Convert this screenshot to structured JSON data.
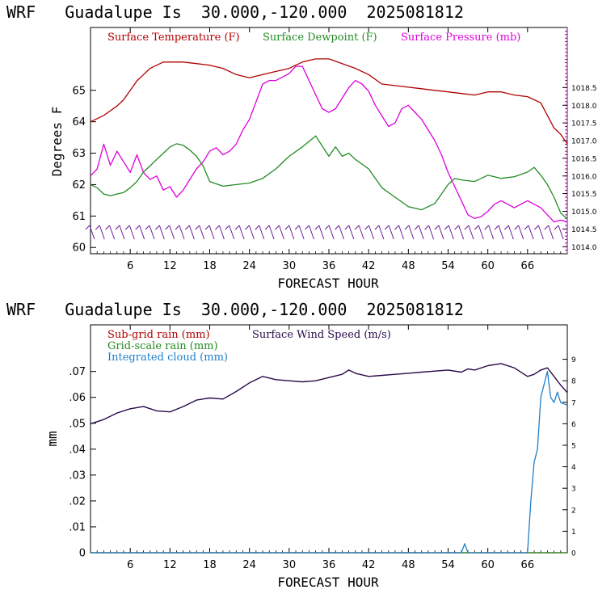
{
  "colors": {
    "temperature": "#b00000",
    "dewpoint": "#228b22",
    "pressure": "#dd00dd",
    "subgrid": "#b00000",
    "gridscale": "#228b22",
    "cloud": "#1e7ec8",
    "wind": "#2a0a4a",
    "barb": "#6a1b9a"
  },
  "chart_data": [
    {
      "type": "line",
      "title": "WRF   Guadalupe Is  30.000,-120.000  2025081812",
      "xlabel": "FORECAST HOUR",
      "ylabel": "Degrees F",
      "xlim": [
        0,
        72
      ],
      "ylim": [
        59.8,
        67
      ],
      "y2lim": [
        1013.8,
        1020.2
      ],
      "xticks": [
        6,
        12,
        18,
        24,
        30,
        36,
        42,
        48,
        54,
        60,
        66
      ],
      "xtick_labels": [
        "6",
        "12",
        "18",
        "24",
        "30",
        "36",
        "42",
        "48",
        "54",
        "60",
        "66"
      ],
      "yticks": [
        60,
        61,
        62,
        63,
        64,
        65
      ],
      "ytick_labels": [
        "60",
        "61",
        "62",
        "63",
        "64",
        "65"
      ],
      "y2ticks": [
        1014.0,
        1014.5,
        1015.0,
        1015.5,
        1016.0,
        1016.5,
        1017.0,
        1017.5,
        1018.0,
        1018.5
      ],
      "y2tick_labels": [
        "1014.0",
        "1014.5",
        "1015.0",
        "1015.5",
        "1016.0",
        "1016.5",
        "1017.0",
        "1017.5",
        "1018.0",
        "1018.5"
      ],
      "wind_barb_count": 48,
      "series": [
        {
          "name": "Surface Temperature (F)",
          "x": [
            0,
            2,
            4,
            5,
            6,
            7,
            8,
            9,
            10,
            11,
            12,
            14,
            16,
            18,
            20,
            22,
            24,
            26,
            28,
            30,
            31,
            32,
            33,
            34,
            36,
            38,
            40,
            42,
            44,
            46,
            48,
            50,
            52,
            54,
            56,
            58,
            60,
            62,
            64,
            66,
            68,
            69,
            70,
            71,
            72
          ],
          "y": [
            64.0,
            64.2,
            64.5,
            64.7,
            65.0,
            65.3,
            65.5,
            65.7,
            65.8,
            65.9,
            65.9,
            65.9,
            65.85,
            65.8,
            65.7,
            65.5,
            65.4,
            65.5,
            65.6,
            65.7,
            65.8,
            65.9,
            65.95,
            66.0,
            66.0,
            65.85,
            65.7,
            65.5,
            65.2,
            65.15,
            65.1,
            65.05,
            65.0,
            64.95,
            64.9,
            64.85,
            64.95,
            64.95,
            64.85,
            64.8,
            64.6,
            64.2,
            63.8,
            63.6,
            63.3
          ]
        },
        {
          "name": "Surface Dewpoint (F)",
          "x": [
            0,
            1,
            2,
            3,
            4,
            5,
            6,
            7,
            8,
            9,
            10,
            11,
            12,
            13,
            14,
            15,
            16,
            17,
            18,
            20,
            22,
            24,
            26,
            28,
            30,
            32,
            34,
            36,
            37,
            38,
            39,
            40,
            42,
            44,
            46,
            48,
            50,
            52,
            54,
            55,
            56,
            58,
            60,
            62,
            64,
            66,
            67,
            68,
            69,
            70,
            71,
            72
          ],
          "y": [
            62.0,
            61.9,
            61.7,
            61.65,
            61.7,
            61.75,
            61.9,
            62.1,
            62.4,
            62.6,
            62.8,
            63.0,
            63.2,
            63.3,
            63.25,
            63.1,
            62.9,
            62.6,
            62.1,
            61.95,
            62.0,
            62.05,
            62.2,
            62.5,
            62.9,
            63.2,
            63.55,
            62.9,
            63.2,
            62.9,
            63.0,
            62.8,
            62.5,
            61.9,
            61.6,
            61.3,
            61.2,
            61.4,
            62.0,
            62.2,
            62.15,
            62.1,
            62.3,
            62.2,
            62.25,
            62.4,
            62.55,
            62.3,
            62.0,
            61.6,
            61.1,
            60.9
          ]
        },
        {
          "name": "Surface Pressure (mb)",
          "x": [
            0,
            1,
            2,
            3,
            4,
            5,
            6,
            7,
            8,
            9,
            10,
            11,
            12,
            13,
            14,
            15,
            16,
            17,
            18,
            19,
            20,
            21,
            22,
            23,
            24,
            25,
            26,
            27,
            28,
            29,
            30,
            31,
            32,
            33,
            34,
            35,
            36,
            37,
            38,
            39,
            40,
            41,
            42,
            43,
            44,
            45,
            46,
            47,
            48,
            49,
            50,
            51,
            52,
            53,
            54,
            55,
            56,
            57,
            58,
            59,
            60,
            61,
            62,
            63,
            64,
            65,
            66,
            67,
            68,
            69,
            70,
            71,
            72
          ],
          "y": [
            1016.0,
            1016.2,
            1016.9,
            1016.3,
            1016.7,
            1016.4,
            1016.1,
            1016.6,
            1016.1,
            1015.9,
            1016.0,
            1015.6,
            1015.7,
            1015.4,
            1015.6,
            1015.9,
            1016.2,
            1016.4,
            1016.7,
            1016.8,
            1016.6,
            1016.7,
            1016.9,
            1017.3,
            1017.6,
            1018.1,
            1018.6,
            1018.7,
            1018.7,
            1018.8,
            1018.9,
            1019.1,
            1019.1,
            1018.7,
            1018.3,
            1017.9,
            1017.8,
            1017.9,
            1018.2,
            1018.5,
            1018.7,
            1018.6,
            1018.4,
            1018.0,
            1017.7,
            1017.4,
            1017.5,
            1017.9,
            1018.0,
            1017.8,
            1017.6,
            1017.3,
            1017.0,
            1016.6,
            1016.1,
            1015.7,
            1015.3,
            1014.9,
            1014.8,
            1014.85,
            1015.0,
            1015.2,
            1015.3,
            1015.2,
            1015.1,
            1015.2,
            1015.3,
            1015.2,
            1015.1,
            1014.9,
            1014.7,
            1014.75,
            1014.7
          ]
        }
      ]
    },
    {
      "type": "line",
      "title": "WRF   Guadalupe Is  30.000,-120.000  2025081812",
      "xlabel": "FORECAST HOUR",
      "ylabel": "mm",
      "xlim": [
        0,
        72
      ],
      "ylim": [
        0,
        0.088
      ],
      "y2lim": [
        0,
        10.6
      ],
      "xticks": [
        6,
        12,
        18,
        24,
        30,
        36,
        42,
        48,
        54,
        60,
        66
      ],
      "xtick_labels": [
        "6",
        "12",
        "18",
        "24",
        "30",
        "36",
        "42",
        "48",
        "54",
        "60",
        "66"
      ],
      "yticks": [
        0,
        0.01,
        0.02,
        0.03,
        0.04,
        0.05,
        0.06,
        0.07
      ],
      "ytick_labels": [
        "0",
        ".01",
        ".02",
        ".03",
        ".04",
        ".05",
        ".06",
        ".07"
      ],
      "y2ticks": [
        0,
        1,
        2,
        3,
        4,
        5,
        6,
        7,
        8,
        9
      ],
      "y2tick_labels": [
        "0",
        "1",
        "2",
        "3",
        "4",
        "5",
        "6",
        "7",
        "8",
        "9"
      ],
      "series": [
        {
          "name": "Sub-grid rain (mm)",
          "axis": "left",
          "x": [
            0,
            72
          ],
          "y": [
            0,
            0
          ]
        },
        {
          "name": "Grid-scale rain (mm)",
          "axis": "left",
          "x": [
            0,
            72
          ],
          "y": [
            0,
            0
          ]
        },
        {
          "name": "Integrated cloud (mm)",
          "axis": "left",
          "x": [
            0,
            56,
            56.5,
            57,
            57.5,
            66,
            66.5,
            67,
            67.5,
            68,
            68.5,
            69,
            69.5,
            70,
            70.5,
            71,
            71.5,
            72
          ],
          "y": [
            0,
            0,
            0.0035,
            0,
            0,
            0,
            0.02,
            0.035,
            0.04,
            0.06,
            0.065,
            0.07,
            0.06,
            0.058,
            0.062,
            0.058,
            0.0575,
            0.057
          ]
        },
        {
          "name": "Surface Wind Speed (m/s)",
          "axis": "right",
          "x": [
            0,
            2,
            4,
            6,
            8,
            10,
            12,
            14,
            16,
            18,
            20,
            22,
            24,
            26,
            28,
            30,
            32,
            34,
            36,
            38,
            39,
            40,
            42,
            44,
            46,
            48,
            50,
            52,
            54,
            56,
            57,
            58,
            60,
            62,
            64,
            66,
            67,
            68,
            69,
            70,
            71,
            72
          ],
          "y": [
            6.0,
            6.2,
            6.5,
            6.7,
            6.8,
            6.6,
            6.55,
            6.8,
            7.1,
            7.2,
            7.15,
            7.5,
            7.9,
            8.2,
            8.05,
            8.0,
            7.95,
            8.0,
            8.15,
            8.3,
            8.5,
            8.35,
            8.2,
            8.25,
            8.3,
            8.35,
            8.4,
            8.45,
            8.5,
            8.4,
            8.55,
            8.5,
            8.7,
            8.8,
            8.6,
            8.2,
            8.3,
            8.5,
            8.6,
            8.2,
            7.8,
            7.45
          ]
        }
      ]
    }
  ]
}
